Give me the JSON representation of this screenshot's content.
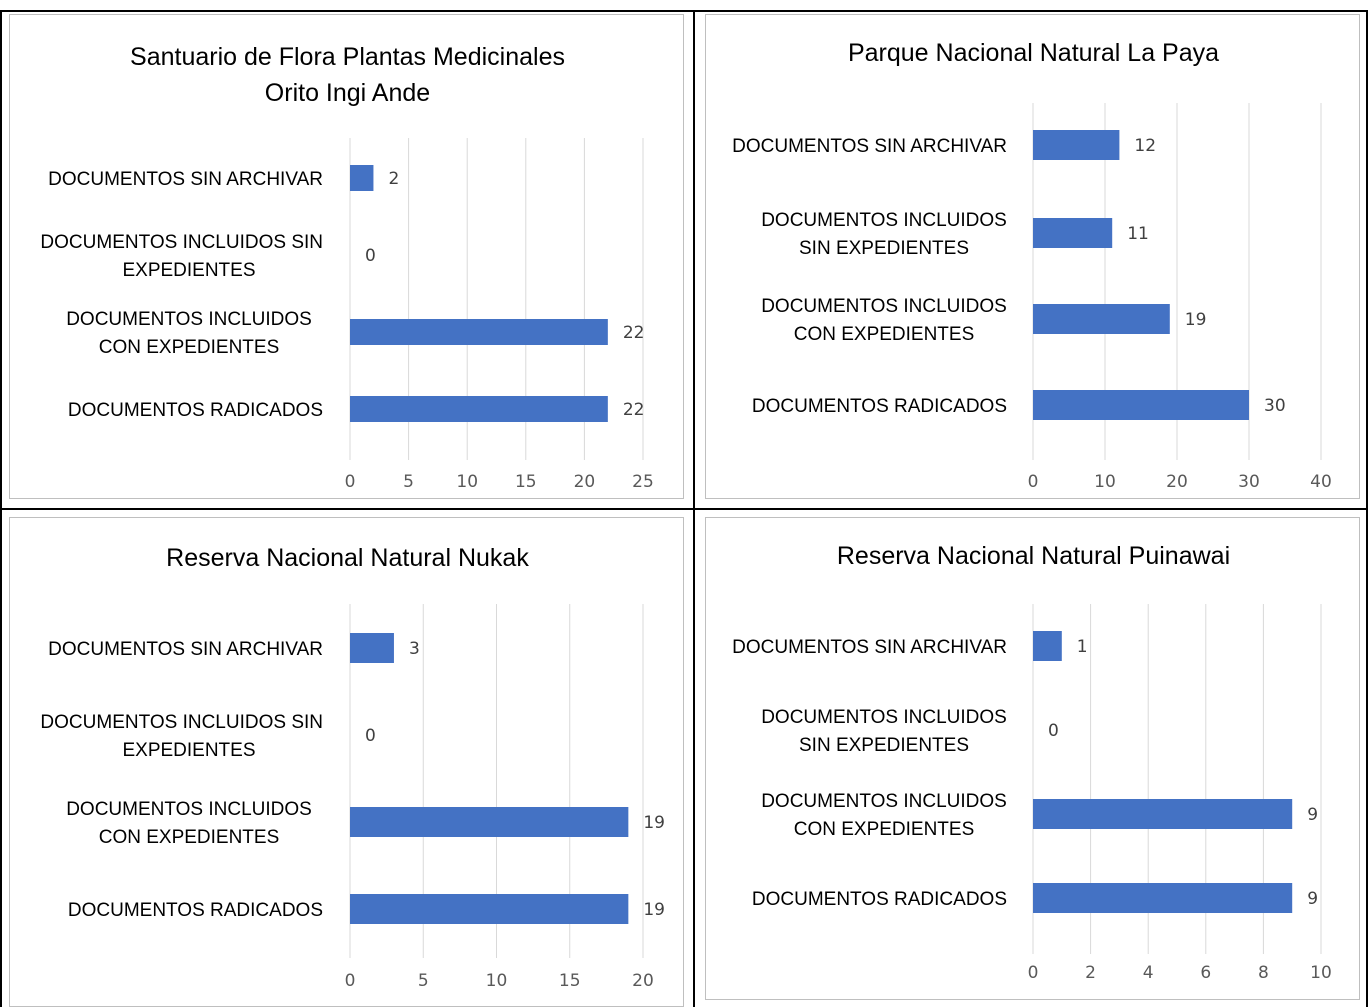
{
  "chart_data": [
    {
      "type": "bar",
      "orientation": "horizontal",
      "title": [
        "Santuario de Flora Plantas Medicinales",
        "Orito Ingi Ande"
      ],
      "categories": [
        [
          "DOCUMENTOS SIN ARCHIVAR"
        ],
        [
          "DOCUMENTOS INCLUIDOS SIN",
          "EXPEDIENTES"
        ],
        [
          "DOCUMENTOS INCLUIDOS",
          "CON EXPEDIENTES"
        ],
        [
          "DOCUMENTOS RADICADOS"
        ]
      ],
      "values": [
        2,
        0,
        22,
        22
      ],
      "xlim": [
        0,
        25
      ],
      "ticks": [
        0,
        5,
        10,
        15,
        20,
        25
      ],
      "grid": true,
      "color": "#4472C4"
    },
    {
      "type": "bar",
      "orientation": "horizontal",
      "title": [
        "Parque Nacional Natural La Paya"
      ],
      "categories": [
        [
          "DOCUMENTOS SIN ARCHIVAR"
        ],
        [
          "DOCUMENTOS INCLUIDOS",
          "SIN EXPEDIENTES"
        ],
        [
          "DOCUMENTOS INCLUIDOS",
          "CON EXPEDIENTES"
        ],
        [
          "DOCUMENTOS RADICADOS"
        ]
      ],
      "values": [
        12,
        11,
        19,
        30
      ],
      "xlim": [
        0,
        40
      ],
      "ticks": [
        0,
        10,
        20,
        30,
        40
      ],
      "grid": true,
      "color": "#4472C4"
    },
    {
      "type": "bar",
      "orientation": "horizontal",
      "title": [
        "Reserva Nacional Natural Nukak"
      ],
      "categories": [
        [
          "DOCUMENTOS SIN ARCHIVAR"
        ],
        [
          "DOCUMENTOS INCLUIDOS SIN",
          "EXPEDIENTES"
        ],
        [
          "DOCUMENTOS INCLUIDOS",
          "CON EXPEDIENTES"
        ],
        [
          "DOCUMENTOS RADICADOS"
        ]
      ],
      "values": [
        3,
        0,
        19,
        19
      ],
      "xlim": [
        0,
        20
      ],
      "ticks": [
        0,
        5,
        10,
        15,
        20
      ],
      "grid": true,
      "color": "#4472C4"
    },
    {
      "type": "bar",
      "orientation": "horizontal",
      "title": [
        "Reserva Nacional Natural Puinawai"
      ],
      "categories": [
        [
          "DOCUMENTOS SIN ARCHIVAR"
        ],
        [
          "DOCUMENTOS INCLUIDOS",
          "SIN EXPEDIENTES"
        ],
        [
          "DOCUMENTOS INCLUIDOS",
          "CON EXPEDIENTES"
        ],
        [
          "DOCUMENTOS RADICADOS"
        ]
      ],
      "values": [
        1,
        0,
        9,
        9
      ],
      "xlim": [
        0,
        10
      ],
      "ticks": [
        0,
        2,
        4,
        6,
        8,
        10
      ],
      "grid": true,
      "color": "#4472C4"
    }
  ]
}
